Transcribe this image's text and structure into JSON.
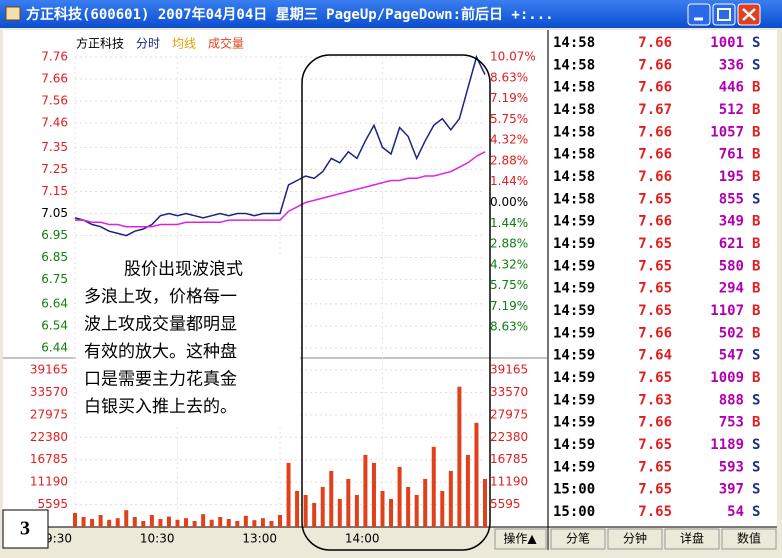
{
  "window": {
    "title": "方正科技(600601)  2007年04月04日  星期三  PageUp/PageDown:前后日  +:..."
  },
  "chart_data": {
    "type": "line",
    "legend": [
      "方正科技",
      "分时",
      "均线",
      "成交量"
    ],
    "x": [
      0,
      5,
      10,
      15,
      20,
      25,
      30,
      35,
      40,
      45,
      50,
      55,
      60,
      65,
      70,
      75,
      80,
      85,
      90,
      95,
      100,
      105,
      110,
      115,
      120,
      125,
      130,
      135,
      140,
      145,
      150,
      155,
      160,
      165,
      170,
      175,
      180,
      185,
      190,
      195,
      200,
      205,
      210,
      215,
      220,
      225,
      230,
      235,
      240
    ],
    "xlim": [
      0,
      240
    ],
    "xticks": [
      {
        "value": 0,
        "label": "9:30"
      },
      {
        "value": 60,
        "label": "10:30"
      },
      {
        "value": 120,
        "label": "13:00"
      },
      {
        "value": 180,
        "label": "14:00"
      }
    ],
    "series": [
      {
        "name": "分时",
        "color": "#1a237e",
        "values": [
          7.03,
          7.02,
          7.0,
          6.99,
          6.97,
          6.96,
          6.95,
          6.97,
          6.98,
          7.0,
          7.04,
          7.05,
          7.04,
          7.05,
          7.04,
          7.03,
          7.04,
          7.05,
          7.04,
          7.05,
          7.05,
          7.04,
          7.05,
          7.05,
          7.05,
          7.18,
          7.2,
          7.22,
          7.21,
          7.24,
          7.3,
          7.28,
          7.33,
          7.3,
          7.38,
          7.45,
          7.35,
          7.32,
          7.44,
          7.4,
          7.3,
          7.38,
          7.45,
          7.48,
          7.43,
          7.48,
          7.62,
          7.76,
          7.68
        ]
      },
      {
        "name": "均线",
        "color": "#e020e0",
        "values": [
          7.02,
          7.02,
          7.01,
          7.01,
          7.0,
          7.0,
          6.99,
          6.99,
          6.99,
          6.99,
          7.0,
          7.0,
          7.0,
          7.01,
          7.01,
          7.01,
          7.01,
          7.01,
          7.02,
          7.02,
          7.02,
          7.02,
          7.02,
          7.02,
          7.02,
          7.06,
          7.08,
          7.1,
          7.11,
          7.12,
          7.13,
          7.14,
          7.15,
          7.16,
          7.17,
          7.18,
          7.19,
          7.2,
          7.2,
          7.21,
          7.21,
          7.22,
          7.22,
          7.23,
          7.24,
          7.26,
          7.28,
          7.31,
          7.33
        ]
      },
      {
        "name": "成交量",
        "color": "#e0401a",
        "axis": "vol",
        "values": [
          3500,
          2500,
          2000,
          3000,
          1800,
          2200,
          4200,
          2500,
          1500,
          3000,
          2000,
          2600,
          1800,
          2200,
          1500,
          3200,
          1800,
          2500,
          2000,
          1500,
          2800,
          1700,
          2200,
          1500,
          3000,
          16000,
          9000,
          8000,
          6000,
          10000,
          14000,
          7000,
          12000,
          8000,
          18000,
          16000,
          9000,
          7000,
          15000,
          10000,
          8000,
          12000,
          20000,
          9000,
          14000,
          35000,
          18000,
          26000,
          12000
        ]
      }
    ],
    "ylim": [
      6.44,
      7.76
    ],
    "yticks": [
      7.76,
      7.66,
      7.56,
      7.46,
      7.35,
      7.25,
      7.15,
      7.05,
      6.95,
      6.85,
      6.75,
      6.64,
      6.54,
      6.44
    ],
    "y2lim": [
      -10.07,
      10.07
    ],
    "y2ticks": [
      {
        "value": 10.07,
        "label": "10.07%"
      },
      {
        "value": 8.63,
        "label": "8.63%"
      },
      {
        "value": 7.19,
        "label": "7.19%"
      },
      {
        "value": 5.75,
        "label": "5.75%"
      },
      {
        "value": 4.32,
        "label": "4.32%"
      },
      {
        "value": 2.88,
        "label": "2.88%"
      },
      {
        "value": 1.44,
        "label": "1.44%"
      },
      {
        "value": 0,
        "label": "0.00%"
      },
      {
        "value": -1.44,
        "label": "1.44%"
      },
      {
        "value": -2.88,
        "label": "2.88%"
      },
      {
        "value": -4.32,
        "label": "4.32%"
      },
      {
        "value": -5.75,
        "label": "5.75%"
      },
      {
        "value": -7.19,
        "label": "7.19%"
      },
      {
        "value": -8.63,
        "label": "8.63%"
      }
    ],
    "vollim": [
      0,
      39165
    ],
    "volticks": [
      39165,
      33570,
      27975,
      22380,
      16785,
      11190,
      5595
    ],
    "grid": true,
    "annotation": [
      "股价出现波浪式",
      "多浪上攻，价格每一",
      "波上攻成交量都明显",
      "有效的放大。这种盘",
      "口是需要主力花真金",
      "白银买入推上去的。"
    ],
    "figure_label": "3"
  },
  "trades": [
    [
      "14:58",
      "7.66",
      "1001",
      "S"
    ],
    [
      "14:58",
      "7.66",
      "336",
      "S"
    ],
    [
      "14:58",
      "7.66",
      "446",
      "B"
    ],
    [
      "14:58",
      "7.67",
      "512",
      "B"
    ],
    [
      "14:58",
      "7.66",
      "1057",
      "B"
    ],
    [
      "14:58",
      "7.66",
      "761",
      "B"
    ],
    [
      "14:58",
      "7.66",
      "195",
      "B"
    ],
    [
      "14:58",
      "7.65",
      "855",
      "S"
    ],
    [
      "14:59",
      "7.66",
      "349",
      "B"
    ],
    [
      "14:59",
      "7.65",
      "621",
      "B"
    ],
    [
      "14:59",
      "7.65",
      "580",
      "B"
    ],
    [
      "14:59",
      "7.65",
      "294",
      "B"
    ],
    [
      "14:59",
      "7.65",
      "1107",
      "B"
    ],
    [
      "14:59",
      "7.66",
      "502",
      "B"
    ],
    [
      "14:59",
      "7.64",
      "547",
      "S"
    ],
    [
      "14:59",
      "7.65",
      "1009",
      "B"
    ],
    [
      "14:59",
      "7.63",
      "888",
      "S"
    ],
    [
      "14:59",
      "7.66",
      "753",
      "B"
    ],
    [
      "14:59",
      "7.65",
      "1189",
      "S"
    ],
    [
      "14:59",
      "7.65",
      "593",
      "S"
    ],
    [
      "15:00",
      "7.65",
      "397",
      "S"
    ],
    [
      "15:00",
      "7.65",
      "54",
      "S"
    ]
  ],
  "tabs": [
    "操作▲",
    "分笔",
    "分钟",
    "详盘",
    "数值"
  ]
}
